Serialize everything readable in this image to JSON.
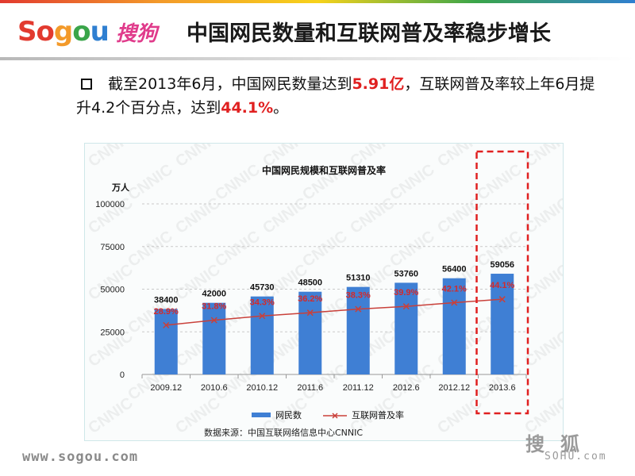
{
  "header": {
    "logo_parts": [
      "So",
      "g",
      "o",
      "u"
    ],
    "logo_cn": "搜狗",
    "title": "中国网民数量和互联网普及率稳步增长"
  },
  "bullet": {
    "text_1": "截至2013年6月，中国网民数量达到",
    "highlight_1": "5.91亿",
    "text_2": "，互联网普及率较上年6月提升4.2个百分点，达到",
    "highlight_2": "44.1%",
    "text_3": "。"
  },
  "footer": {
    "url": "www.sogou.com",
    "sohu_cn": "搜狐",
    "sohu_en": "SOHU.com"
  },
  "colors": {
    "bar": "#3f7fd4",
    "line": "#c9403a",
    "rate_label": "#d42a2a",
    "highlight_box": "#e02020"
  },
  "chart_data": {
    "type": "bar",
    "title": "中国网民规模和互联网普及率",
    "ylabel": "万人",
    "ylim": [
      0,
      100000
    ],
    "yticks": [
      "0",
      "25000",
      "50000",
      "75000",
      "100000"
    ],
    "categories": [
      "2009.12",
      "2010.6",
      "2010.12",
      "2011.6",
      "2011.12",
      "2012.6",
      "2012.12",
      "2013.6"
    ],
    "series": [
      {
        "name": "网民数",
        "kind": "bar",
        "values": [
          38400,
          42000,
          45730,
          48500,
          51310,
          53760,
          56400,
          59056
        ],
        "labels": [
          "38400",
          "42000",
          "45730",
          "48500",
          "51310",
          "53760",
          "56400",
          "59056"
        ]
      },
      {
        "name": "互联网普及率",
        "kind": "line",
        "unit": "%",
        "values": [
          28.9,
          31.8,
          34.3,
          36.2,
          38.3,
          39.9,
          42.1,
          44.1
        ],
        "labels": [
          "28.9%",
          "31.8%",
          "34.3%",
          "36.2%",
          "38.3%",
          "39.9%",
          "42.1%",
          "44.1%"
        ]
      }
    ],
    "watermark": "CNNIC",
    "highlighted_category": "2013.6",
    "legend_position": "bottom",
    "source": "数据来源：中国互联网络信息中心CNNIC"
  }
}
